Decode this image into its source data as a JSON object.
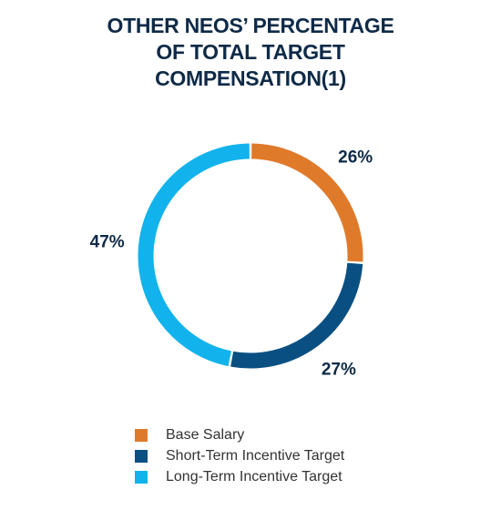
{
  "chart_data": {
    "type": "pie",
    "title_lines": [
      "OTHER NEOS’ PERCENTAGE",
      "OF TOTAL TARGET",
      "COMPENSATION(1)"
    ],
    "categories": [
      "Base Salary",
      "Short-Term Incentive Target",
      "Long-Term Incentive Target"
    ],
    "values": [
      26,
      27,
      47
    ],
    "labels": [
      "26%",
      "27%",
      "47%"
    ],
    "colors": [
      "#e07a2b",
      "#0a4f82",
      "#12b3ec"
    ],
    "donut": true,
    "legend_position": "bottom"
  }
}
